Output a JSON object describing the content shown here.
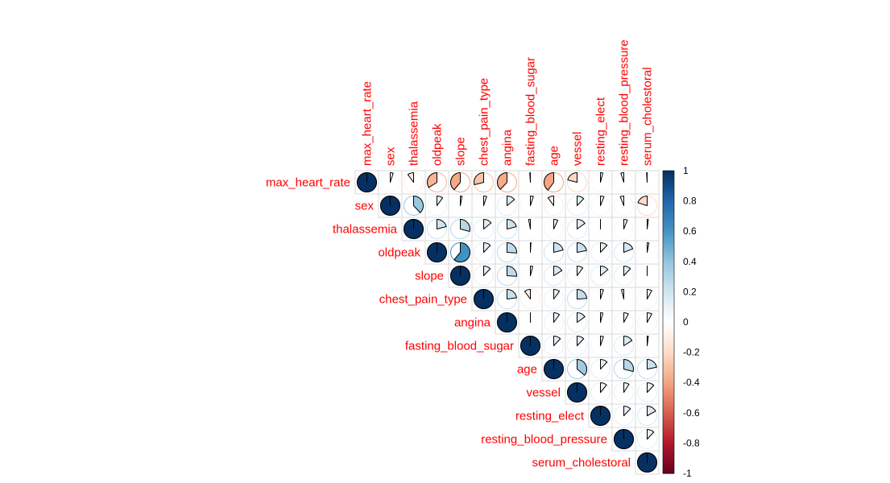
{
  "chart_data": {
    "type": "heatmap",
    "style": "correlation matrix, upper triangle, pie glyphs",
    "variables": [
      "max_heart_rate",
      "sex",
      "thalassemia",
      "oldpeak",
      "slope",
      "chest_pain_type",
      "angina",
      "fasting_blood_sugar",
      "age",
      "vessel",
      "resting_elect",
      "resting_blood_pressure",
      "serum_cholestoral"
    ],
    "matrix": [
      [
        1.0,
        0.05,
        -0.1,
        -0.34,
        -0.39,
        -0.29,
        -0.38,
        -0.01,
        -0.4,
        -0.21,
        0.04,
        -0.05,
        -0.01
      ],
      [
        0.05,
        1.0,
        0.38,
        0.1,
        0.03,
        0.05,
        0.14,
        0.05,
        -0.1,
        0.12,
        0.06,
        -0.06,
        -0.2
      ],
      [
        -0.1,
        0.38,
        1.0,
        0.21,
        0.29,
        0.14,
        0.21,
        -0.03,
        0.07,
        0.15,
        0.0,
        0.06,
        0.02
      ],
      [
        -0.34,
        0.1,
        0.21,
        1.0,
        0.61,
        0.12,
        0.26,
        0.01,
        0.21,
        0.22,
        0.12,
        0.19,
        0.03
      ],
      [
        -0.39,
        0.03,
        0.29,
        0.61,
        1.0,
        0.12,
        0.26,
        0.04,
        0.16,
        0.1,
        0.14,
        0.12,
        0.0
      ],
      [
        -0.29,
        0.05,
        0.14,
        0.12,
        0.12,
        1.0,
        0.23,
        -0.1,
        0.1,
        0.24,
        0.05,
        -0.04,
        0.08
      ],
      [
        -0.38,
        0.14,
        0.21,
        0.26,
        0.26,
        0.23,
        1.0,
        0.0,
        0.1,
        0.15,
        0.04,
        0.08,
        0.08
      ],
      [
        -0.01,
        0.05,
        -0.03,
        0.01,
        0.04,
        -0.1,
        0.0,
        1.0,
        0.12,
        0.12,
        0.05,
        0.16,
        0.02
      ],
      [
        -0.4,
        -0.1,
        0.07,
        0.21,
        0.16,
        0.1,
        0.1,
        0.12,
        1.0,
        0.36,
        0.12,
        0.29,
        0.22
      ],
      [
        -0.21,
        0.12,
        0.15,
        0.22,
        0.1,
        0.24,
        0.15,
        0.12,
        0.36,
        1.0,
        0.11,
        0.09,
        0.12
      ],
      [
        0.04,
        0.06,
        0.0,
        0.12,
        0.14,
        0.05,
        0.04,
        0.05,
        0.12,
        0.11,
        1.0,
        0.12,
        0.17
      ],
      [
        -0.05,
        -0.06,
        0.06,
        0.19,
        0.12,
        -0.04,
        0.08,
        0.16,
        0.29,
        0.09,
        0.12,
        1.0,
        0.12
      ],
      [
        -0.01,
        -0.2,
        0.02,
        0.03,
        0.0,
        0.08,
        0.08,
        0.02,
        0.22,
        0.12,
        0.17,
        0.12,
        1.0
      ]
    ],
    "colorbar": {
      "range": [
        -1,
        1
      ],
      "ticks": [
        "1",
        "0.8",
        "0.6",
        "0.4",
        "0.2",
        "0",
        "-0.2",
        "-0.4",
        "-0.6",
        "-0.8",
        "-1"
      ],
      "colors": {
        "-1": "#67001f",
        "-0.8": "#b2182b",
        "-0.6": "#d6604d",
        "-0.4": "#f4a582",
        "-0.2": "#fddbc7",
        "0": "#ffffff",
        "0.2": "#d1e5f0",
        "0.4": "#92c5de",
        "0.6": "#4393c3",
        "0.8": "#2166ac",
        "1": "#053061"
      }
    },
    "label_color": "#ff0000",
    "legend": "right"
  }
}
